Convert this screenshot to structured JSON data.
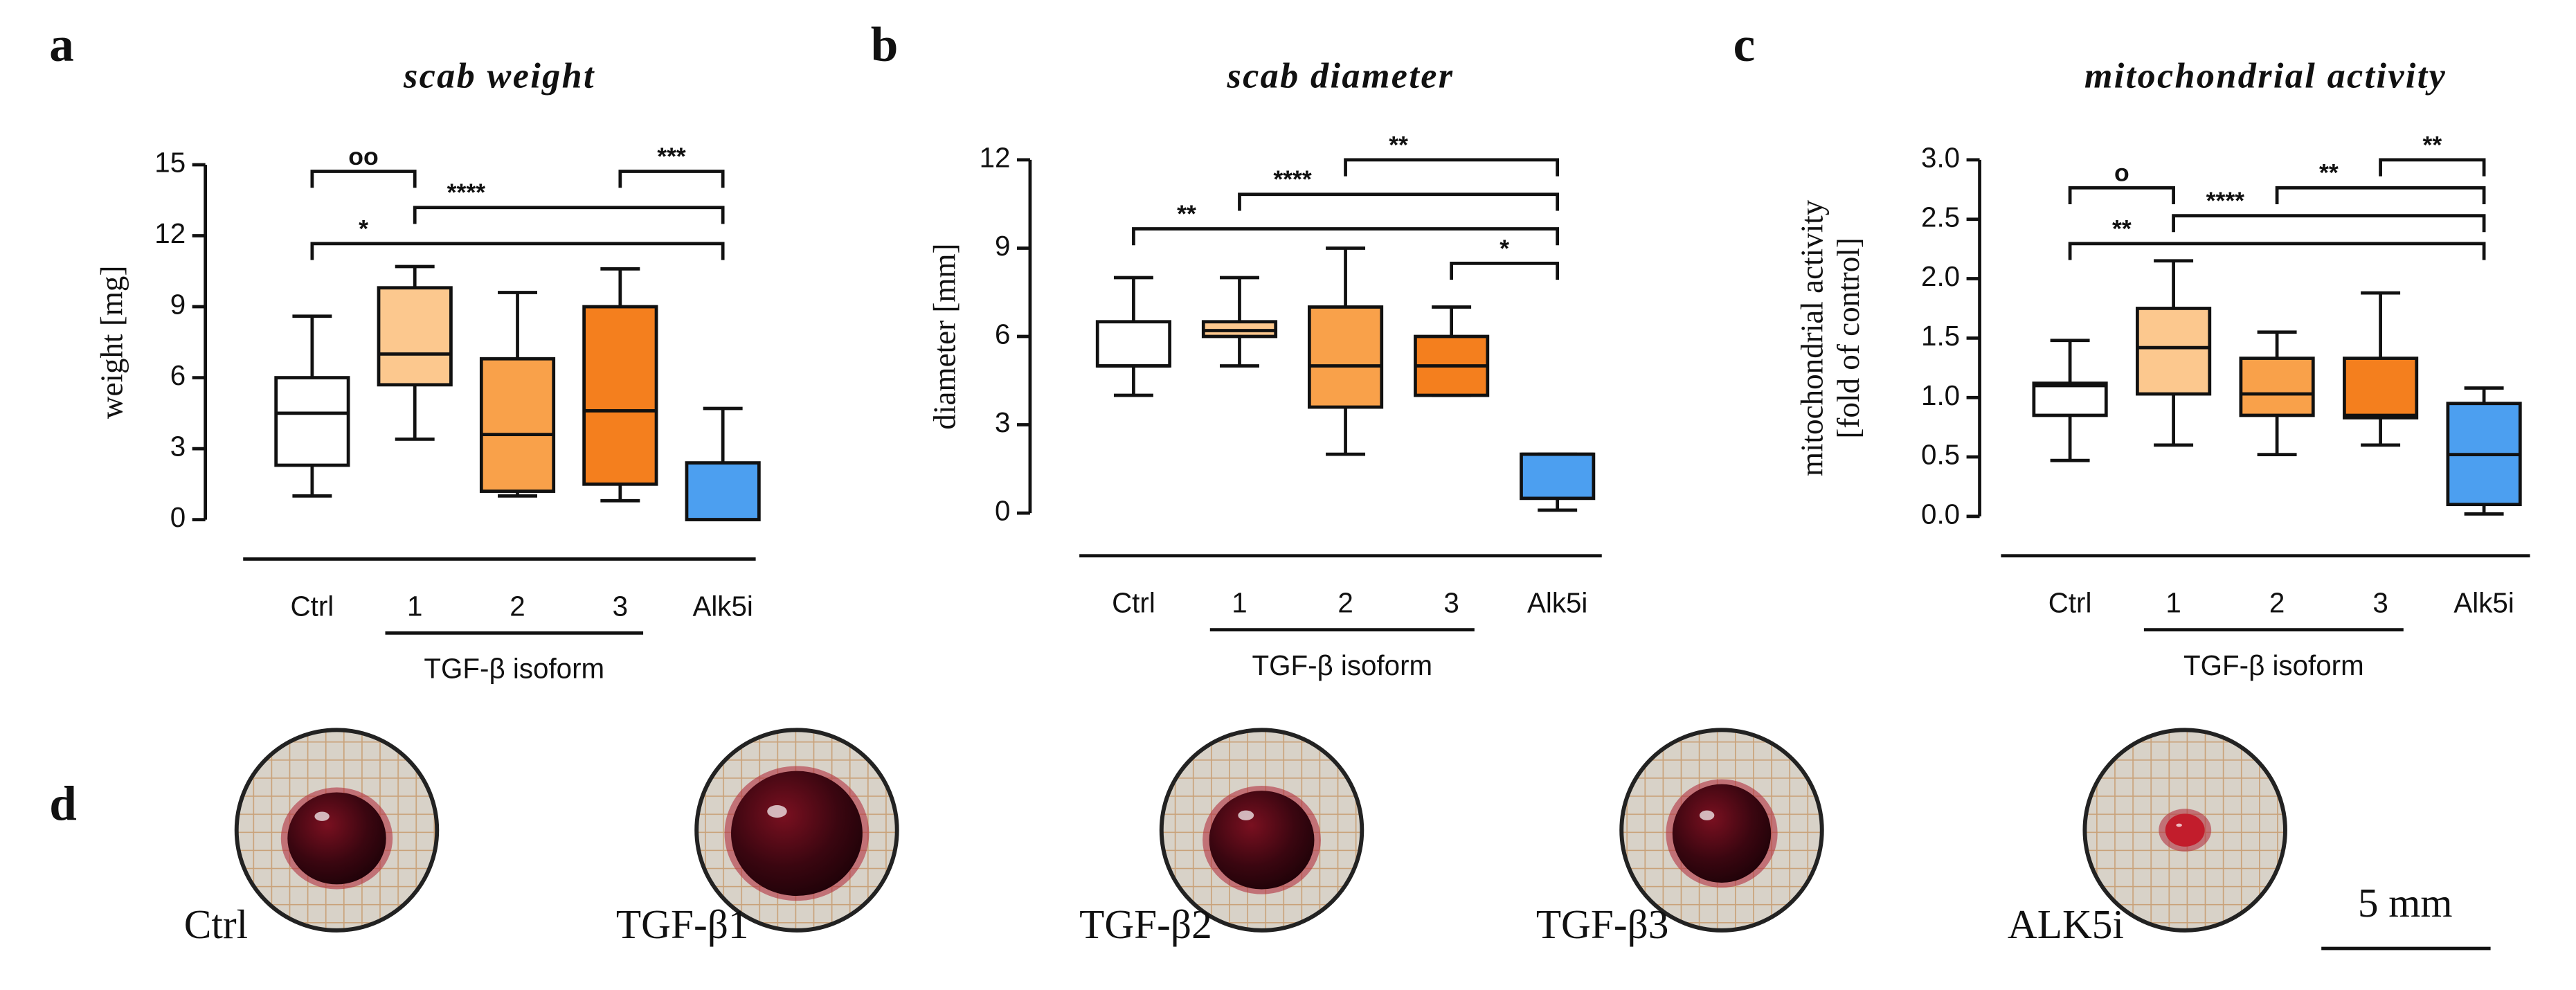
{
  "chart_data": [
    {
      "type": "box",
      "panel": "a",
      "title": "scab weight",
      "ylabel": [
        "weight [mg]"
      ],
      "categories": [
        "Ctrl",
        "1",
        "2",
        "3",
        "Alk5i"
      ],
      "colors": [
        "#ffffff",
        "#fcc88e",
        "#f9a14a",
        "#f47f1e",
        "#4c9ff0"
      ],
      "boxes": [
        {
          "min": 1,
          "q1": 2.3,
          "median": 4.5,
          "q3": 6,
          "max": 8.6
        },
        {
          "min": 3.4,
          "q1": 5.7,
          "median": 7,
          "q3": 9.8,
          "max": 10.7
        },
        {
          "min": 1,
          "q1": 1.2,
          "median": 3.6,
          "q3": 6.8,
          "max": 9.6
        },
        {
          "min": 0.8,
          "q1": 1.5,
          "median": 4.6,
          "q3": 9,
          "max": 10.6
        },
        {
          "min": 0,
          "q1": 0,
          "median": 0,
          "q3": 2.4,
          "max": 4.7
        }
      ],
      "ylim": [
        0,
        15
      ],
      "yticks": [
        0,
        3,
        6,
        9,
        12,
        15
      ],
      "group": {
        "label": "TGF-β isoform",
        "from": "1",
        "to": "3"
      },
      "brackets": [
        {
          "label": "*",
          "from": "Ctrl",
          "to": "Alk5i"
        },
        {
          "label": "****",
          "from": "1",
          "to": "Alk5i"
        },
        {
          "label": "***",
          "from": "3",
          "to": "Alk5i"
        },
        {
          "label": "oo",
          "from": "Ctrl",
          "to": "1"
        }
      ]
    },
    {
      "type": "box",
      "panel": "b",
      "title": "scab diameter",
      "ylabel": [
        "diameter [mm]"
      ],
      "categories": [
        "Ctrl",
        "1",
        "2",
        "3",
        "Alk5i"
      ],
      "colors": [
        "#ffffff",
        "#fcc88e",
        "#f9a14a",
        "#f47f1e",
        "#4c9ff0"
      ],
      "boxes": [
        {
          "min": 4,
          "q1": 5,
          "median": 5,
          "q3": 6.5,
          "max": 8
        },
        {
          "min": 5,
          "q1": 6,
          "median": 6.2,
          "q3": 6.5,
          "max": 8
        },
        {
          "min": 2,
          "q1": 3.6,
          "median": 5,
          "q3": 7,
          "max": 9
        },
        {
          "min": 4,
          "q1": 4,
          "median": 5,
          "q3": 6,
          "max": 7
        },
        {
          "min": 0.1,
          "q1": 0.5,
          "median": 2,
          "q3": 2,
          "max": 2
        }
      ],
      "ylim": [
        0,
        12
      ],
      "yticks": [
        0,
        3,
        6,
        9,
        12
      ],
      "group": {
        "label": "TGF-β isoform",
        "from": "1",
        "to": "3"
      },
      "brackets": [
        {
          "label": "*",
          "from": "3",
          "to": "Alk5i"
        },
        {
          "label": "**",
          "from": "Ctrl",
          "to": "Alk5i"
        },
        {
          "label": "****",
          "from": "1",
          "to": "Alk5i"
        },
        {
          "label": "**",
          "from": "2",
          "to": "Alk5i"
        }
      ]
    },
    {
      "type": "box",
      "panel": "c",
      "title": "mitochondrial activity",
      "ylabel": [
        "mitochondrial activity",
        "[fold of control]"
      ],
      "categories": [
        "Ctrl",
        "1",
        "2",
        "3",
        "Alk5i"
      ],
      "colors": [
        "#ffffff",
        "#fcc88e",
        "#f9a14a",
        "#f47f1e",
        "#4c9ff0"
      ],
      "boxes": [
        {
          "min": 0.47,
          "q1": 0.85,
          "median": 1.1,
          "q3": 1.12,
          "max": 1.48
        },
        {
          "min": 0.6,
          "q1": 1.03,
          "median": 1.42,
          "q3": 1.75,
          "max": 2.15
        },
        {
          "min": 0.52,
          "q1": 0.85,
          "median": 1.03,
          "q3": 1.33,
          "max": 1.55
        },
        {
          "min": 0.6,
          "q1": 0.83,
          "median": 0.85,
          "q3": 1.33,
          "max": 1.88
        },
        {
          "min": 0.02,
          "q1": 0.1,
          "median": 0.52,
          "q3": 0.95,
          "max": 1.08
        }
      ],
      "ylim": [
        0,
        3
      ],
      "yticks": [
        {
          "value": 0,
          "label": "0.0"
        },
        {
          "value": 0.5,
          "label": "0.5"
        },
        {
          "value": 1,
          "label": "1.0"
        },
        {
          "value": 1.5,
          "label": "1.5"
        },
        {
          "value": 2,
          "label": "2.0"
        },
        {
          "value": 2.5,
          "label": "2.5"
        },
        {
          "value": 3,
          "label": "3.0"
        }
      ],
      "group": {
        "label": "TGF-β isoform",
        "from": "1",
        "to": "3"
      },
      "brackets": [
        {
          "label": "**",
          "from": "Ctrl",
          "to": "Alk5i"
        },
        {
          "label": "****",
          "from": "1",
          "to": "Alk5i"
        },
        {
          "label": "**",
          "from": "2",
          "to": "Alk5i"
        },
        {
          "label": "**",
          "from": "3",
          "to": "Alk5i"
        },
        {
          "label": "o",
          "from": "Ctrl",
          "to": "1"
        }
      ]
    }
  ],
  "photos": {
    "panel": "d",
    "labels": [
      "Ctrl",
      "TGF-β1",
      "TGF-β2",
      "TGF-β3",
      "ALK5i"
    ],
    "scale_bar": "5 mm"
  }
}
